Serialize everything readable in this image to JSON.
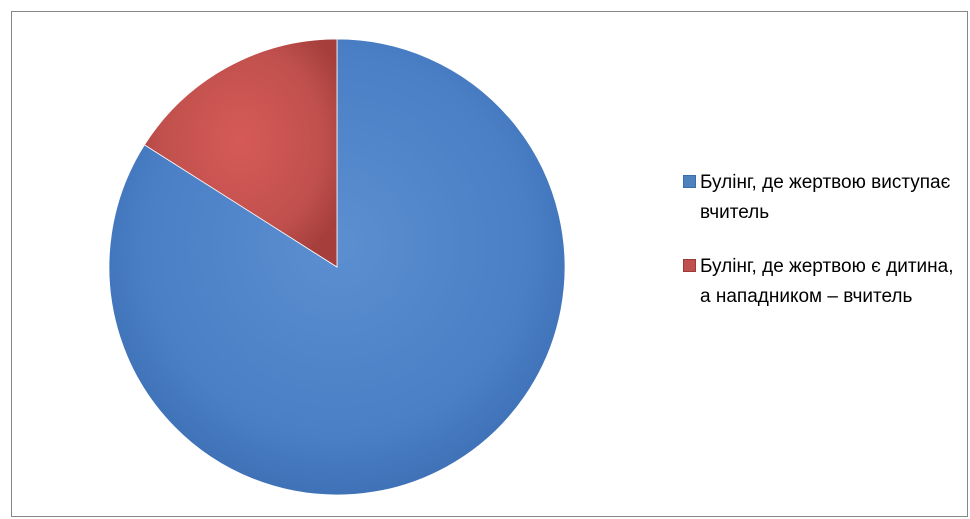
{
  "chart_data": {
    "type": "pie",
    "title": "",
    "categories": [
      "Булінг, де жертвою виступає вчитель",
      "Булінг, де жертвою є дитина, а нападником – вчитель"
    ],
    "values": [
      84,
      16
    ],
    "colors": [
      "#4F81BD",
      "#C0504D"
    ],
    "legend_position": "right"
  },
  "legend": {
    "items": [
      {
        "label": "Булінг, де жертвою виступає вчитель",
        "color": "#4F81BD"
      },
      {
        "label": "Булінг, де жертвою є дитина, а нападником – вчитель",
        "color": "#C0504D"
      }
    ]
  }
}
